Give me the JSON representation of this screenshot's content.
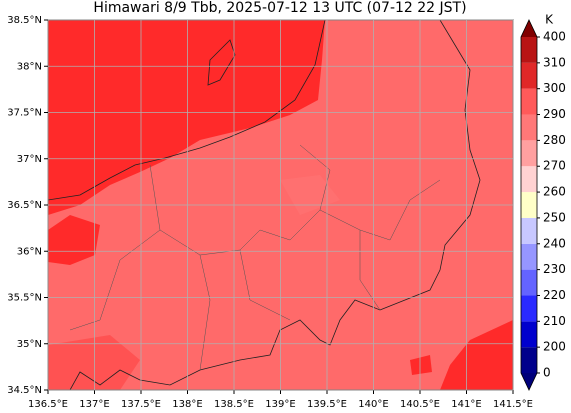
{
  "map": {
    "title": "Himawari 8/9 Tbb, 2025-07-12 13 UTC (07-12 22 JST)",
    "lon_lim": [
      136.5,
      141.5
    ],
    "lat_lim": [
      34.5,
      38.5
    ],
    "lon_ticks": [
      {
        "value": 136.5,
        "label": "136.5°E"
      },
      {
        "value": 137,
        "label": "137°E"
      },
      {
        "value": 137.5,
        "label": "137.5°E"
      },
      {
        "value": 138,
        "label": "138°E"
      },
      {
        "value": 138.5,
        "label": "138.5°E"
      },
      {
        "value": 139,
        "label": "139°E"
      },
      {
        "value": 139.5,
        "label": "139.5°E"
      },
      {
        "value": 140,
        "label": "140°E"
      },
      {
        "value": 140.5,
        "label": "140.5°E"
      },
      {
        "value": 141,
        "label": "141°E"
      },
      {
        "value": 141.5,
        "label": "141.5°E"
      }
    ],
    "lat_ticks": [
      {
        "value": 34.5,
        "label": "34.5°N"
      },
      {
        "value": 35,
        "label": "35°N"
      },
      {
        "value": 35.5,
        "label": "35.5°N"
      },
      {
        "value": 36,
        "label": "36°N"
      },
      {
        "value": 36.5,
        "label": "36.5°N"
      },
      {
        "value": 37,
        "label": "37°N"
      },
      {
        "value": 37.5,
        "label": "37.5°N"
      },
      {
        "value": 38,
        "label": "38°N"
      },
      {
        "value": 38.5,
        "label": "38.5°N"
      }
    ],
    "colorbar": {
      "label": "K",
      "ticks": [
        0,
        200,
        210,
        220,
        230,
        240,
        250,
        260,
        270,
        280,
        290,
        300,
        310,
        400
      ],
      "colors": [
        "#00008b",
        "#0000cd",
        "#2a2aff",
        "#6464ff",
        "#9696ff",
        "#c8c8ff",
        "#ffffc8",
        "#ffd2d2",
        "#ffa0a0",
        "#ff7878",
        "#ff5a5a",
        "#e02828",
        "#b81414"
      ],
      "under_color": "#00007a",
      "over_color": "#800000"
    }
  }
}
